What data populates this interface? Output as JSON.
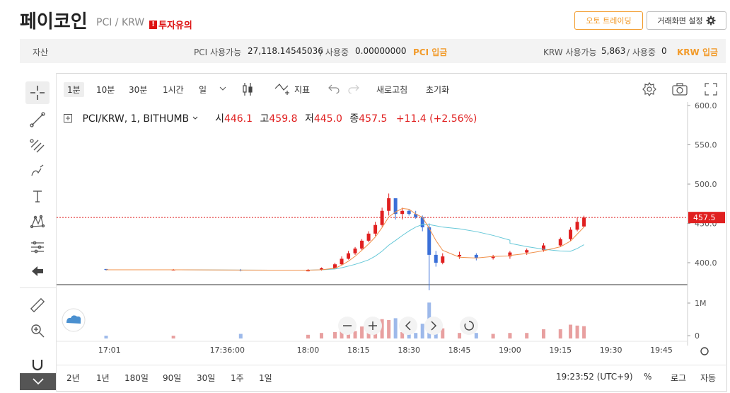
{
  "header": {
    "coin_name": "페이코인",
    "pair": "PCI / KRW",
    "warning_badge": "!",
    "warning": "투자유의",
    "auto_trading_button": "오토 트레이딩",
    "screen_setting_button": "거래화면 설정",
    "screen_setting_icon": "gear-icon"
  },
  "asset_bar": {
    "label": "자산",
    "pci_available_label": "PCI 사용가능",
    "pci_available_value": "27,118.14545036",
    "pci_in_use_label": "/ 사용중",
    "pci_in_use_value": "0.00000000",
    "pci_deposit": "PCI 입금",
    "krw_available_label": "KRW 사용가능",
    "krw_available_value": "5,863",
    "krw_in_use_label": "/ 사용중",
    "krw_in_use_value": "0",
    "krw_deposit": "KRW 입금"
  },
  "toolbar": {
    "timeframes": [
      "1분",
      "10분",
      "30분",
      "1시간",
      "일"
    ],
    "active_timeframe": "1분",
    "indicator_label": "지표",
    "refresh_label": "새로고침",
    "reset_label": "초기화"
  },
  "legend": {
    "symbol": "PCI/KRW, 1, BITHUMB",
    "open_label": "시",
    "open": "446.1",
    "high_label": "고",
    "high": "459.8",
    "low_label": "저",
    "low": "445.0",
    "close_label": "종",
    "close": "457.5",
    "change": "+11.4 (+2.56%)"
  },
  "bottom_bar": {
    "ranges": [
      "2년",
      "1년",
      "180일",
      "90일",
      "30일",
      "1주",
      "1일"
    ],
    "clock": "19:23:52 (UTC+9)",
    "percent": "%",
    "log": "로그",
    "auto": "자동"
  },
  "colors": {
    "up": "#e02020",
    "down": "#3a6fd8",
    "ma_short": "#f0904a",
    "ma_long": "#66c8d8",
    "accent": "#f29b2b"
  },
  "chart_data": {
    "type": "candlestick",
    "price_ticks": [
      "600.0",
      "550.0",
      "500.0",
      "450.0",
      "400.0"
    ],
    "current_price_label": "457.5",
    "volume_ticks": [
      "1M",
      "0"
    ],
    "time_ticks": [
      "17:01",
      "17:36:00",
      "18:00",
      "18:15",
      "18:30",
      "18:45",
      "19:00",
      "19:15",
      "19:30",
      "19:45"
    ],
    "candles_approx": [
      [
        17.0,
        392,
        392,
        390,
        391
      ],
      [
        17.2,
        391,
        392,
        390,
        391
      ],
      [
        17.4,
        391,
        392,
        389,
        390
      ],
      [
        17.6,
        390,
        391,
        389,
        390
      ],
      [
        18.0,
        390,
        392,
        389,
        391
      ],
      [
        18.04,
        391,
        394,
        390,
        393
      ],
      [
        18.08,
        393,
        400,
        392,
        398
      ],
      [
        18.1,
        398,
        408,
        397,
        405
      ],
      [
        18.12,
        405,
        415,
        404,
        412
      ],
      [
        18.14,
        412,
        420,
        410,
        418
      ],
      [
        18.16,
        418,
        430,
        416,
        428
      ],
      [
        18.18,
        428,
        440,
        426,
        437
      ],
      [
        18.2,
        437,
        452,
        434,
        448
      ],
      [
        18.22,
        448,
        470,
        446,
        466
      ],
      [
        18.24,
        466,
        488,
        460,
        482
      ],
      [
        18.26,
        482,
        478,
        455,
        462
      ],
      [
        18.28,
        462,
        470,
        455,
        466
      ],
      [
        18.3,
        466,
        468,
        460,
        462
      ],
      [
        18.32,
        462,
        466,
        456,
        458
      ],
      [
        18.34,
        458,
        460,
        440,
        445
      ],
      [
        18.36,
        445,
        450,
        365,
        410
      ],
      [
        18.38,
        410,
        415,
        395,
        400
      ],
      [
        18.4,
        400,
        412,
        398,
        408
      ],
      [
        18.45,
        408,
        414,
        405,
        410
      ],
      [
        18.5,
        410,
        412,
        403,
        406
      ],
      [
        18.55,
        406,
        410,
        404,
        408
      ],
      [
        18.6,
        408,
        412,
        405,
        410
      ],
      [
        19.0,
        410,
        415,
        408,
        413
      ],
      [
        19.05,
        413,
        418,
        410,
        416
      ],
      [
        19.1,
        416,
        425,
        414,
        422
      ],
      [
        19.15,
        422,
        432,
        420,
        430
      ],
      [
        19.18,
        430,
        445,
        428,
        442
      ],
      [
        19.2,
        442,
        458,
        440,
        452
      ],
      [
        19.22,
        446.1,
        459.8,
        445.0,
        457.5
      ]
    ]
  }
}
